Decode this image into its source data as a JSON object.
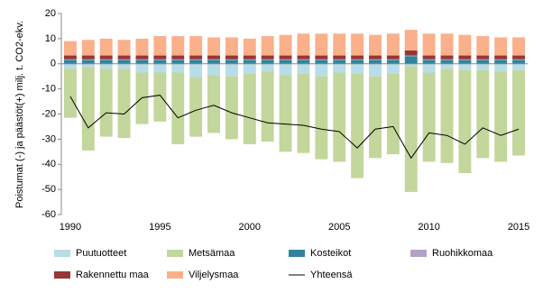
{
  "chart_data": {
    "type": "bar",
    "stacked": true,
    "y_label": "Poistumat (-) ja päästöt(+) milj. t. CO2-ekv.",
    "x": [
      1990,
      1991,
      1992,
      1993,
      1994,
      1995,
      1996,
      1997,
      1998,
      1999,
      2000,
      2001,
      2002,
      2003,
      2004,
      2005,
      2006,
      2007,
      2008,
      2009,
      2010,
      2011,
      2012,
      2013,
      2014,
      2015
    ],
    "xlim": [
      1989.5,
      2015.5
    ],
    "xticks": [
      1990,
      1995,
      2000,
      2005,
      2010,
      2015
    ],
    "ylim": [
      -60,
      20
    ],
    "yticks": [
      -60,
      -50,
      -40,
      -30,
      -20,
      -10,
      0,
      10,
      20
    ],
    "grid": false,
    "legend": "bottom",
    "series": [
      {
        "name": "Puutuotteet",
        "color": "#b7dde8",
        "values": [
          -2,
          -1.5,
          -2,
          -2,
          -3.5,
          -3.5,
          -3.5,
          -5.5,
          -4.5,
          -5,
          -4,
          -3,
          -4.5,
          -4,
          -5,
          -3.5,
          -4,
          -5,
          -4,
          -1,
          -3.5,
          -2,
          -2.5,
          -2.5,
          -3,
          -2.5
        ]
      },
      {
        "name": "Metsämaa",
        "color": "#c3d69b",
        "values": [
          -19.5,
          -33,
          -27,
          -27.5,
          -20.5,
          -19.5,
          -28.5,
          -23.5,
          -23,
          -25,
          -28,
          -28,
          -30.5,
          -31.5,
          -33,
          -35.5,
          -41.5,
          -32.5,
          -32,
          -50,
          -35.5,
          -37.5,
          -41,
          -35,
          -36,
          -34
        ]
      },
      {
        "name": "Kosteikot",
        "color": "#31849b",
        "values": [
          1.5,
          1.5,
          1.5,
          1.5,
          1.5,
          1.5,
          1.5,
          1.5,
          1.5,
          1.5,
          1.5,
          1.5,
          1.5,
          1.5,
          1.5,
          1.5,
          1.5,
          1.5,
          1.5,
          3,
          1.5,
          1.5,
          1.5,
          1.5,
          1.5,
          1.5
        ]
      },
      {
        "name": "Ruohikkomaa",
        "color": "#b3a2c7",
        "values": [
          0.3,
          0.3,
          0.3,
          0.3,
          0.3,
          0.3,
          0.3,
          0.3,
          0.3,
          0.3,
          0.3,
          0.3,
          0.3,
          0.3,
          0.3,
          0.3,
          0.3,
          0.3,
          0.3,
          0.3,
          0.3,
          0.3,
          0.3,
          0.3,
          0.3,
          0.3
        ]
      },
      {
        "name": "Rakennettu maa",
        "color": "#953735",
        "values": [
          1.5,
          1.5,
          1.5,
          1.5,
          1.5,
          1.5,
          1.5,
          1.5,
          1.5,
          1.5,
          1.5,
          1.5,
          1.5,
          1.5,
          1.5,
          1.5,
          1.5,
          1.5,
          1.5,
          2,
          1.5,
          1.5,
          1.5,
          1.5,
          1.5,
          1.5
        ]
      },
      {
        "name": "Viljelysmaa",
        "color": "#fab08a",
        "values": [
          5.7,
          6.2,
          6.7,
          6.2,
          6.7,
          7.7,
          7.7,
          7.7,
          7.2,
          7.2,
          6.7,
          7.7,
          8.2,
          8.7,
          8.7,
          8.7,
          8.7,
          8.2,
          8.7,
          8.2,
          8.7,
          8.7,
          8.2,
          7.7,
          7.2,
          7.2
        ]
      },
      {
        "name": "Yhteensä",
        "type": "line",
        "color": "#000000",
        "values": [
          -13,
          -25.5,
          -19.5,
          -20,
          -13.5,
          -12.5,
          -21.5,
          -18.5,
          -16.5,
          -19.5,
          -21.5,
          -23.5,
          -24,
          -24.5,
          -26,
          -27,
          -33.5,
          -26,
          -25,
          -37.5,
          -27.5,
          -28.5,
          -32,
          -25.5,
          -28.5,
          -26
        ]
      }
    ]
  }
}
